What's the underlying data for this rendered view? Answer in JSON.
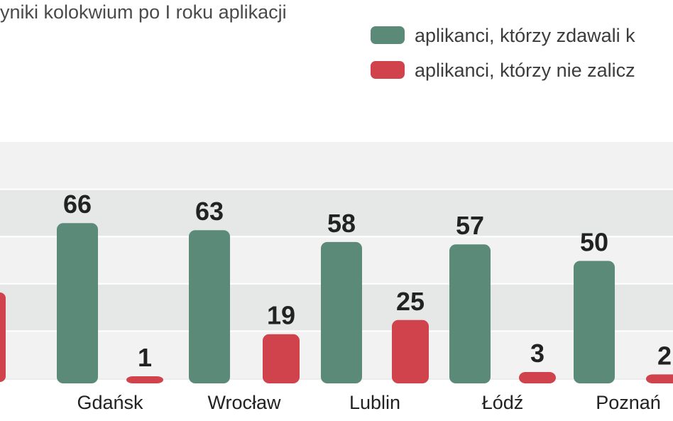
{
  "subtitle": "yniki kolokwium po I roku aplikacji",
  "legend": [
    {
      "label": "aplikanci, którzy zdawali k",
      "color": "#5c8a78"
    },
    {
      "label": "aplikanci, którzy nie zalicz",
      "color": "#d0424c"
    }
  ],
  "colors": {
    "series_1": "#5c8a78",
    "series_2": "#d0424c",
    "band_light": "#f2f2f2",
    "band_dark": "#e6e7e7"
  },
  "chart_data": {
    "type": "bar",
    "title": "",
    "xlabel": "",
    "ylabel": "",
    "ylim": [
      0,
      100
    ],
    "categories": [
      "Gdańsk",
      "Wrocław",
      "Lublin",
      "Łódź",
      "Poznań"
    ],
    "series": [
      {
        "name": "aplikanci, którzy zdawali k",
        "values": [
          66,
          63,
          58,
          57,
          50
        ]
      },
      {
        "name": "aplikanci, którzy nie zalicz",
        "values": [
          1,
          19,
          25,
          3,
          2
        ]
      }
    ],
    "grid": "horizontal bands",
    "legend_position": "top-right"
  }
}
